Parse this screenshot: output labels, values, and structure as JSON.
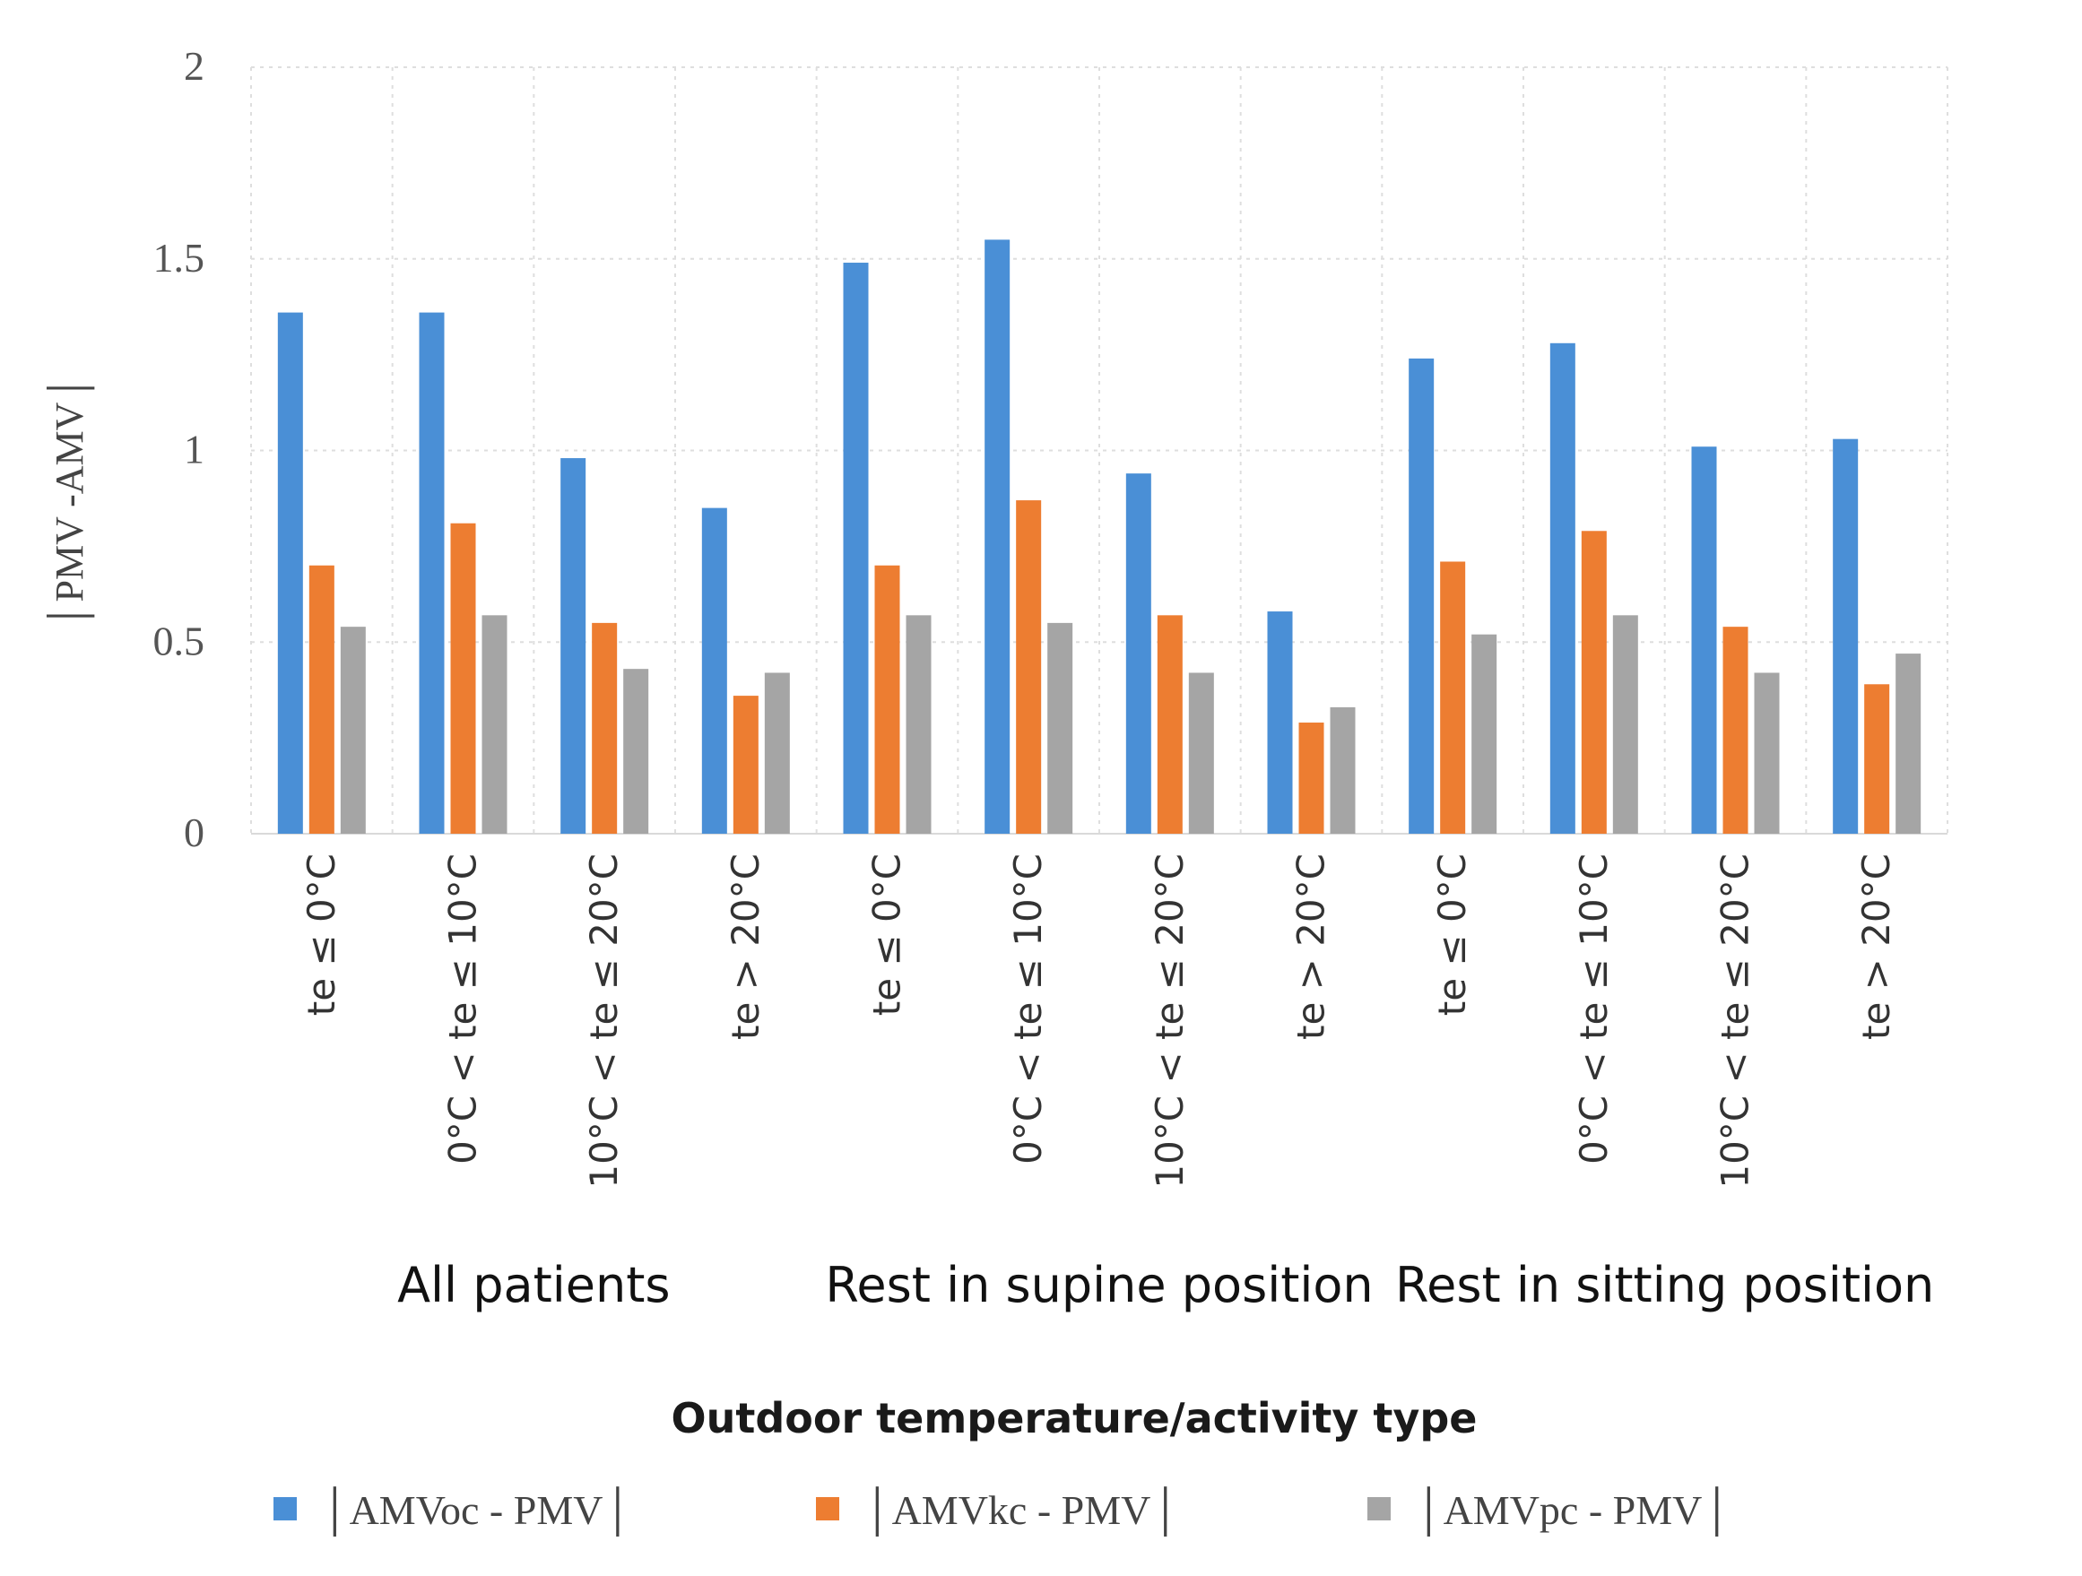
{
  "chart_data": {
    "type": "bar",
    "title": "",
    "ylabel": "│PMV -AMV│",
    "xlabel": "Outdoor temperature/activity type",
    "ylim": [
      0,
      2
    ],
    "yticks": [
      "0",
      "0.5",
      "1",
      "1.5",
      "2"
    ],
    "grid": true,
    "legend_position": "bottom",
    "groups": [
      "All patients",
      "Rest in supine position",
      "Rest in sitting position"
    ],
    "categories": [
      "te ≤ 0°C",
      "0°C < te ≤ 10°C",
      "10°C < te ≤ 20°C",
      "te > 20°C",
      "te ≤ 0°C",
      "0°C < te ≤ 10°C",
      "10°C < te ≤ 20°C",
      "te > 20°C",
      "te ≤ 0°C",
      "0°C < te ≤ 10°C",
      "10°C < te ≤ 20°C",
      "te > 20°C"
    ],
    "series": [
      {
        "name": "│AMVoc - PMV│",
        "color": "#4a8fd6",
        "values": [
          1.36,
          1.36,
          0.98,
          0.85,
          1.49,
          1.55,
          0.94,
          0.58,
          1.24,
          1.28,
          1.01,
          1.03
        ]
      },
      {
        "name": "│AMVkc - PMV│",
        "color": "#ed7d31",
        "values": [
          0.7,
          0.81,
          0.55,
          0.36,
          0.7,
          0.87,
          0.57,
          0.29,
          0.71,
          0.79,
          0.54,
          0.39
        ]
      },
      {
        "name": "│AMVpc - PMV│",
        "color": "#a5a5a5",
        "values": [
          0.54,
          0.57,
          0.43,
          0.42,
          0.57,
          0.55,
          0.42,
          0.33,
          0.52,
          0.57,
          0.42,
          0.47
        ]
      }
    ]
  }
}
